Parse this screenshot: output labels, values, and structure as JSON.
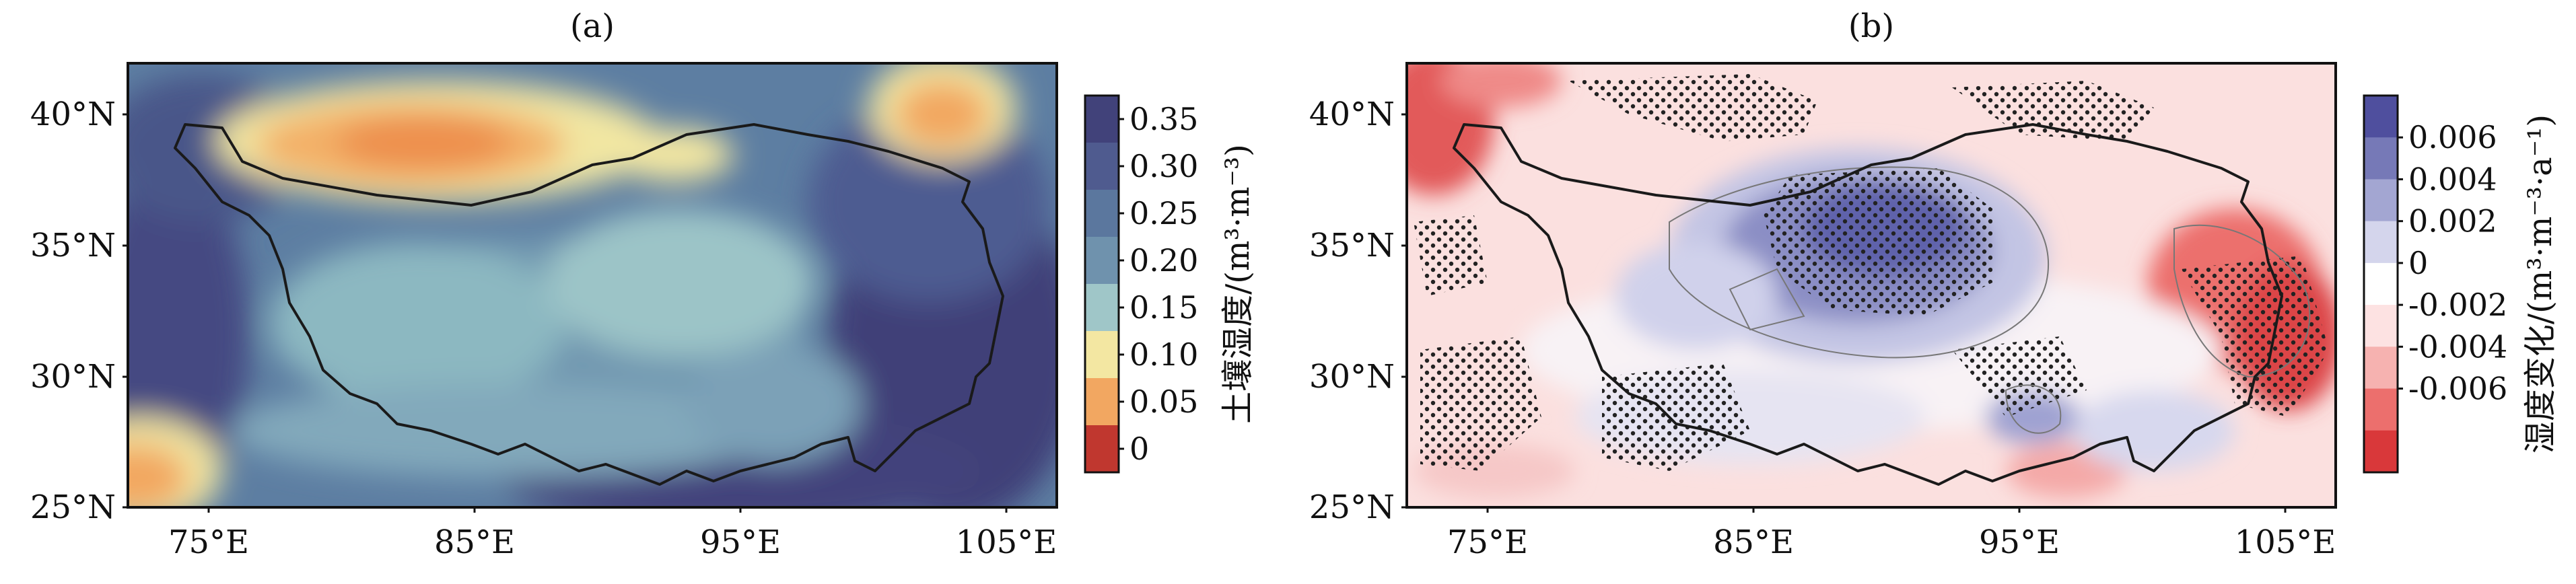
{
  "panels": [
    {
      "id": "a",
      "title": "(a)",
      "x_ticks": [
        "75°E",
        "85°E",
        "95°E",
        "105°E"
      ],
      "y_ticks": [
        "40°N",
        "35°N",
        "30°N",
        "25°N"
      ],
      "colorbar": {
        "title": "土壤湿度/(m³·m⁻³)",
        "ticks": [
          "0.35",
          "0.30",
          "0.25",
          "0.20",
          "0.15",
          "0.10",
          "0.05",
          "0"
        ],
        "colors": [
          "#41427a",
          "#4f5b8f",
          "#5b779e",
          "#6f92ad",
          "#9fc6c8",
          "#f3e7a2",
          "#f2a761",
          "#c0372f"
        ]
      }
    },
    {
      "id": "b",
      "title": "(b)",
      "x_ticks": [
        "75°E",
        "85°E",
        "95°E",
        "105°E"
      ],
      "y_ticks": [
        "40°N",
        "35°N",
        "30°N",
        "25°N"
      ],
      "colorbar": {
        "title": "湿度变化/(m³·m⁻³·a⁻¹)",
        "ticks": [
          "0.006",
          "0.004",
          "0.002",
          "0",
          "-0.002",
          "-0.004",
          "-0.006"
        ],
        "colors": [
          "#4f4f9e",
          "#7679b7",
          "#a3a6d2",
          "#d4d5ec",
          "#ffffff",
          "#fde2e2",
          "#f6b2b0",
          "#ec6f6d",
          "#d9383a"
        ]
      }
    }
  ],
  "map_extent": {
    "lon": [
      72,
      107
    ],
    "lat": [
      25,
      42
    ]
  },
  "colors": {
    "background_a": "#5d7ea2",
    "background_b": "#fbe0df",
    "outline": "#1a1a1a",
    "stipple": "#222222"
  }
}
